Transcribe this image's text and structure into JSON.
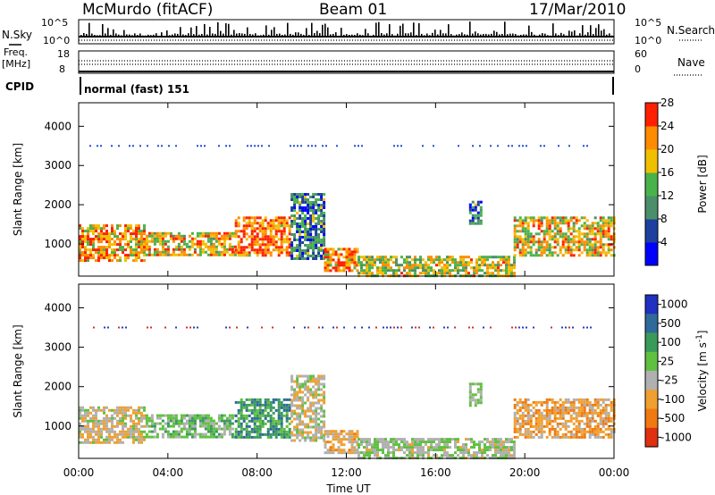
{
  "header": {
    "station": "McMurdo (fitACF)",
    "beam": "Beam 01",
    "date": "17/Mar/2010"
  },
  "strip": {
    "nsky_label": "N.Sky",
    "nsearch_label": "N.Search",
    "nsky_ticks": [
      "10^5",
      "10^0"
    ],
    "nsearch_ticks": [
      "10^5",
      "10^0"
    ],
    "freq_label_line1": "Freq.",
    "freq_label_line2": "[MHz]",
    "freq_ticks": [
      "18",
      "8"
    ],
    "nave_label": "Nave",
    "nave_ticks": [
      "60",
      "0"
    ],
    "cpid_label": "CPID",
    "cpid_text": "normal (fast) 151"
  },
  "chart_data": [
    {
      "type": "heatmap",
      "title": "",
      "xlabel": "",
      "ylabel": "Slant Range [km]",
      "x_ticks": [
        "00:00",
        "04:00",
        "08:00",
        "12:00",
        "16:00",
        "20:00",
        "00:00"
      ],
      "xlim_hours": [
        0,
        24
      ],
      "y_ticks": [
        1000,
        2000,
        3000,
        4000
      ],
      "ylim": [
        180,
        4600
      ],
      "colorbar": {
        "label": "Power [dB]",
        "ticks": [
          "4",
          "8",
          "12",
          "16",
          "20",
          "24",
          "28"
        ],
        "range": [
          0,
          30
        ],
        "colors": [
          "#0000ff",
          "#1f3f9e",
          "#4a8f6a",
          "#4ab24a",
          "#f0c000",
          "#ff8c00",
          "#ff2000"
        ]
      },
      "echo_regions": [
        {
          "t_start": 0.0,
          "t_end": 3.0,
          "r_min": 600,
          "r_max": 1500,
          "dB": 22
        },
        {
          "t_start": 3.0,
          "t_end": 7.0,
          "r_min": 700,
          "r_max": 1300,
          "dB": 20
        },
        {
          "t_start": 7.0,
          "t_end": 9.5,
          "r_min": 700,
          "r_max": 1700,
          "dB": 25
        },
        {
          "t_start": 9.5,
          "t_end": 11.0,
          "r_min": 600,
          "r_max": 2300,
          "dB": 10
        },
        {
          "t_start": 11.0,
          "t_end": 12.5,
          "r_min": 300,
          "r_max": 900,
          "dB": 24
        },
        {
          "t_start": 12.5,
          "t_end": 19.5,
          "r_min": 200,
          "r_max": 700,
          "dB": 18
        },
        {
          "t_start": 19.5,
          "t_end": 24.0,
          "r_min": 700,
          "r_max": 1700,
          "dB": 20
        },
        {
          "t_start": 17.5,
          "t_end": 18.0,
          "r_min": 1500,
          "r_max": 2100,
          "dB": 10
        }
      ],
      "ground_scatter_line_km": 3500
    },
    {
      "type": "heatmap",
      "title": "",
      "xlabel": "Time UT",
      "ylabel": "Slant Range [km]",
      "x_ticks": [
        "00:00",
        "04:00",
        "08:00",
        "12:00",
        "16:00",
        "20:00",
        "00:00"
      ],
      "xlim_hours": [
        0,
        24
      ],
      "y_ticks": [
        1000,
        2000,
        3000,
        4000
      ],
      "ylim": [
        180,
        4600
      ],
      "colorbar": {
        "label": "Velocity [m s^-1]",
        "ticks": [
          "1000",
          "500",
          "100",
          "25",
          "-25",
          "-100",
          "-500",
          "-1000"
        ],
        "range": [
          -1000,
          1000
        ],
        "colors": [
          "#2030c0",
          "#2f6a9a",
          "#3a9a5a",
          "#60c040",
          "#b0b0b0",
          "#f0a030",
          "#f07a10",
          "#e03010"
        ]
      },
      "echo_regions": [
        {
          "t_start": 0.0,
          "t_end": 3.0,
          "r_min": 600,
          "r_max": 1500,
          "velocity": -200
        },
        {
          "t_start": 3.0,
          "t_end": 7.0,
          "r_min": 700,
          "r_max": 1300,
          "velocity": 100
        },
        {
          "t_start": 7.0,
          "t_end": 9.5,
          "r_min": 700,
          "r_max": 1700,
          "velocity": 400
        },
        {
          "t_start": 9.5,
          "t_end": 11.0,
          "r_min": 600,
          "r_max": 2300,
          "velocity": -150
        },
        {
          "t_start": 11.0,
          "t_end": 12.5,
          "r_min": 300,
          "r_max": 900,
          "velocity": -300
        },
        {
          "t_start": 12.5,
          "t_end": 19.5,
          "r_min": 200,
          "r_max": 700,
          "velocity": -50
        },
        {
          "t_start": 19.5,
          "t_end": 24.0,
          "r_min": 700,
          "r_max": 1700,
          "velocity": -400
        },
        {
          "t_start": 17.5,
          "t_end": 18.0,
          "r_min": 1500,
          "r_max": 2100,
          "velocity": 50
        }
      ],
      "ground_scatter_line_km": 3500
    }
  ]
}
